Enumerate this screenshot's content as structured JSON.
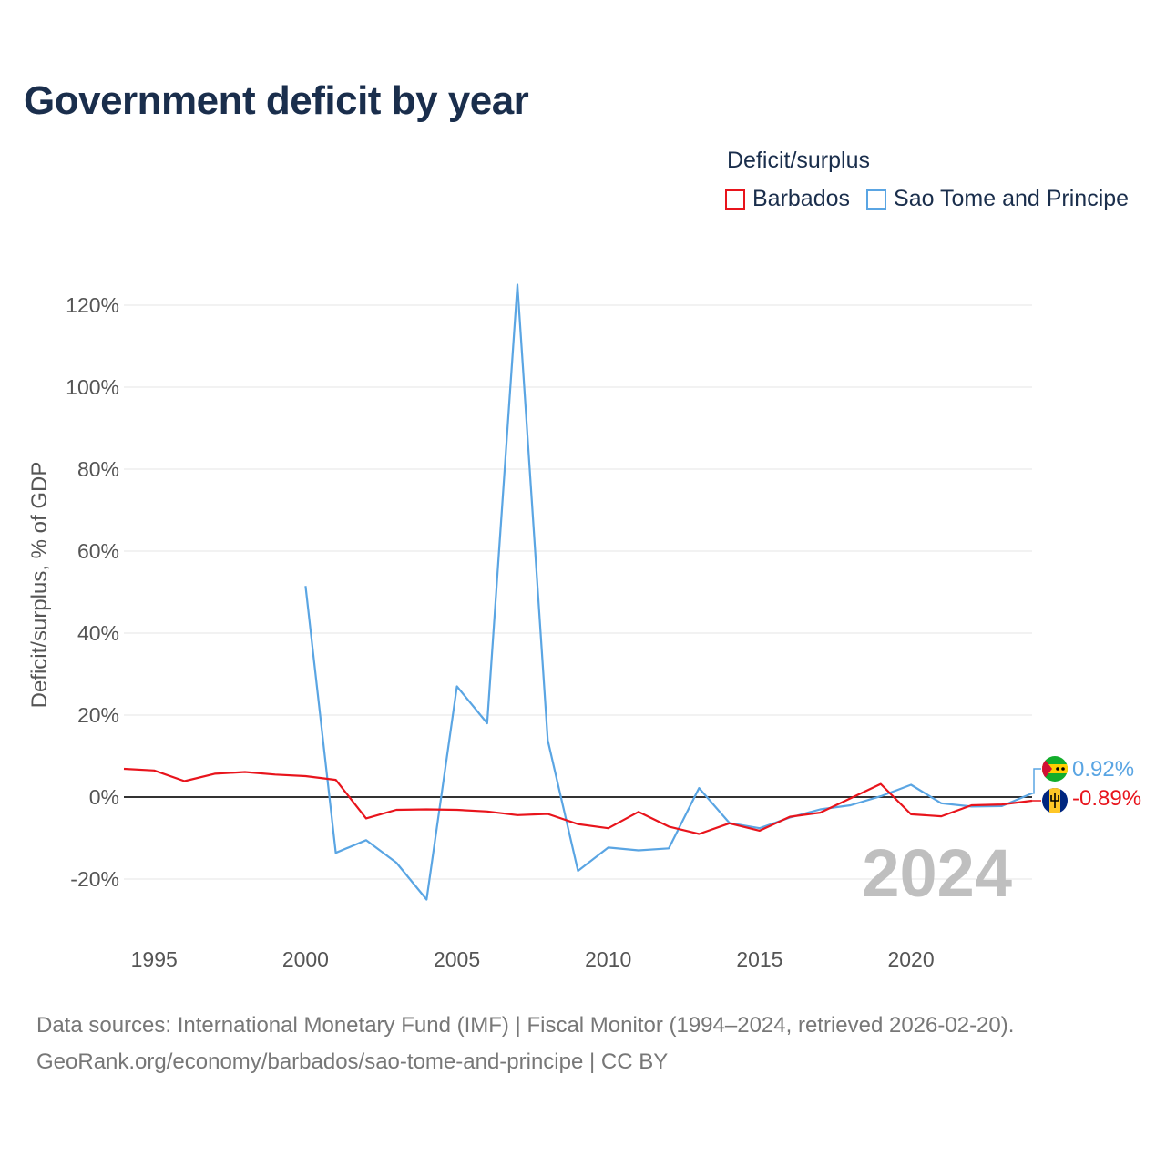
{
  "title": "Government deficit by year",
  "legend": {
    "title": "Deficit/surplus",
    "items": [
      {
        "label": "Barbados",
        "color": "#e8141c"
      },
      {
        "label": "Sao Tome and Principe",
        "color": "#5aa5e3"
      }
    ]
  },
  "footer": {
    "sources": "Data sources: International Monetary Fund (IMF) | Fiscal Monitor (1994–2024, retrieved 2026-02-20).",
    "attribution": "GeoRank.org/economy/barbados/sao-tome-and-principe | CC BY"
  },
  "chart_data": {
    "type": "line",
    "title": "Government deficit by year",
    "xlabel": "",
    "ylabel": "Deficit/surplus, % of GDP",
    "xlim": [
      1994,
      2024
    ],
    "ylim": [
      -30,
      130
    ],
    "x_ticks": [
      1995,
      2000,
      2005,
      2010,
      2015,
      2020
    ],
    "y_ticks": [
      -20,
      0,
      20,
      40,
      60,
      80,
      100,
      120
    ],
    "y_tick_labels": [
      "-20%",
      "0%",
      "20%",
      "40%",
      "60%",
      "80%",
      "100%",
      "120%"
    ],
    "current_year": "2024",
    "series": [
      {
        "name": "Barbados",
        "color": "#e8141c",
        "end_label": "-0.89%",
        "points": [
          [
            1994,
            6.9
          ],
          [
            1995,
            6.5
          ],
          [
            1996,
            3.9
          ],
          [
            1997,
            5.7
          ],
          [
            1998,
            6.1
          ],
          [
            1999,
            5.5
          ],
          [
            2000,
            5.1
          ],
          [
            2001,
            4.2
          ],
          [
            2002,
            -5.2
          ],
          [
            2003,
            -3.1
          ],
          [
            2004,
            -3.0
          ],
          [
            2005,
            -3.1
          ],
          [
            2006,
            -3.5
          ],
          [
            2007,
            -4.4
          ],
          [
            2008,
            -4.1
          ],
          [
            2009,
            -6.6
          ],
          [
            2010,
            -7.6
          ],
          [
            2011,
            -3.6
          ],
          [
            2012,
            -7.2
          ],
          [
            2013,
            -9.0
          ],
          [
            2014,
            -6.4
          ],
          [
            2015,
            -8.2
          ],
          [
            2016,
            -4.8
          ],
          [
            2017,
            -3.8
          ],
          [
            2018,
            -0.3
          ],
          [
            2019,
            3.2
          ],
          [
            2020,
            -4.2
          ],
          [
            2021,
            -4.7
          ],
          [
            2022,
            -2.0
          ],
          [
            2023,
            -1.8
          ],
          [
            2024,
            -0.89
          ]
        ]
      },
      {
        "name": "Sao Tome and Principe",
        "color": "#5aa5e3",
        "end_label": "0.92%",
        "points": [
          [
            2000,
            51.5
          ],
          [
            2001,
            -13.6
          ],
          [
            2002,
            -10.5
          ],
          [
            2003,
            -16.0
          ],
          [
            2004,
            -25.0
          ],
          [
            2005,
            27.0
          ],
          [
            2006,
            18.0
          ],
          [
            2007,
            125.0
          ],
          [
            2008,
            13.9
          ],
          [
            2009,
            -18.0
          ],
          [
            2010,
            -12.3
          ],
          [
            2011,
            -13.0
          ],
          [
            2012,
            -12.5
          ],
          [
            2013,
            2.2
          ],
          [
            2014,
            -6.3
          ],
          [
            2015,
            -7.6
          ],
          [
            2016,
            -5.0
          ],
          [
            2017,
            -3.0
          ],
          [
            2018,
            -2.0
          ],
          [
            2019,
            0.2
          ],
          [
            2020,
            3.0
          ],
          [
            2021,
            -1.5
          ],
          [
            2022,
            -2.3
          ],
          [
            2023,
            -2.2
          ],
          [
            2024,
            0.92
          ]
        ]
      }
    ]
  }
}
